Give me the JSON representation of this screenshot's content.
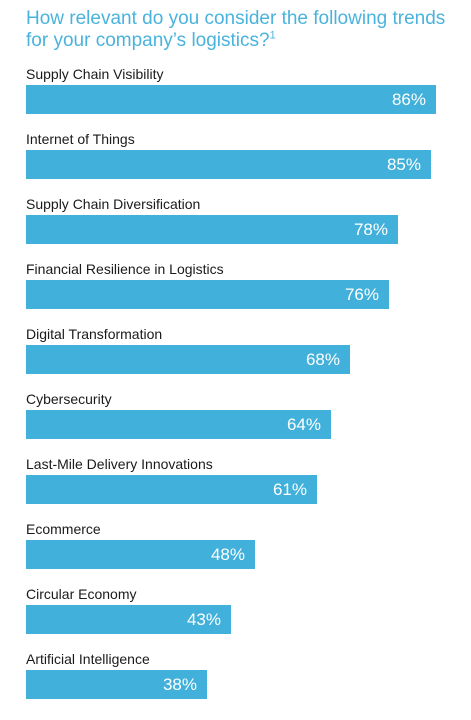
{
  "chart_data": {
    "type": "bar",
    "orientation": "horizontal",
    "title": "How relevant do you consider the following trends for your company’s logistics?",
    "title_footnote": "1",
    "categories": [
      "Supply Chain Visibility",
      "Internet of Things",
      "Supply Chain Diversification",
      "Financial Resilience in Logistics",
      "Digital Transformation",
      "Cybersecurity",
      "Last-Mile Delivery Innovations",
      "Ecommerce",
      "Circular Economy",
      "Artificial Intelligence"
    ],
    "values": [
      86,
      85,
      78,
      76,
      68,
      64,
      61,
      48,
      43,
      38
    ],
    "value_labels": [
      "86%",
      "85%",
      "78%",
      "76%",
      "68%",
      "64%",
      "61%",
      "48%",
      "43%",
      "38%"
    ],
    "xlim": [
      0,
      100
    ],
    "grid": false,
    "bar_color": "#41b0da",
    "title_color": "#4ab3dd"
  }
}
